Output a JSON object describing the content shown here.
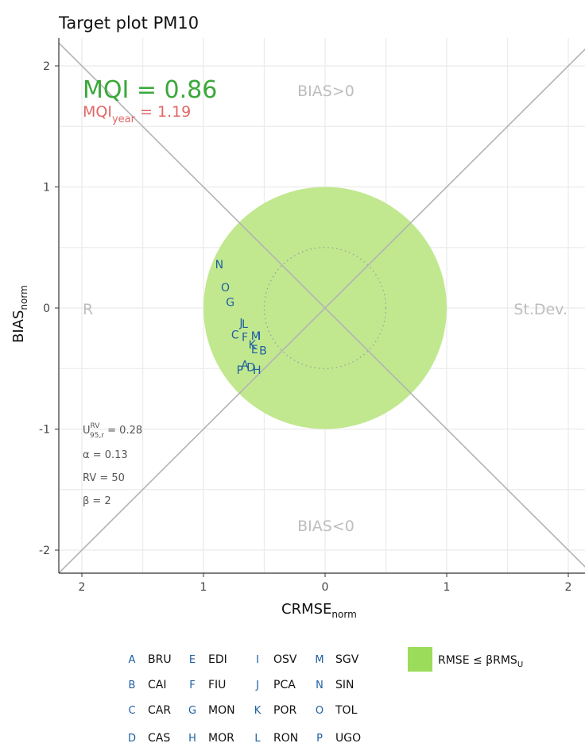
{
  "chart_data": {
    "type": "scatter",
    "title": "Target plot PM10",
    "xlabel": {
      "main": "CRMSE",
      "sub": "norm"
    },
    "ylabel": {
      "main": "BIAS",
      "sub": "norm"
    },
    "xlim": [
      -2.2,
      2.2
    ],
    "ylim": [
      -2.2,
      2.2
    ],
    "x_ticks": [
      -2,
      -1,
      0,
      1,
      2
    ],
    "x_tick_labels": [
      "2",
      "1",
      "0",
      "1",
      "2"
    ],
    "y_ticks": [
      -2,
      -1,
      0,
      1,
      2
    ],
    "y_tick_labels": [
      "-2",
      "-1",
      "0",
      "1",
      "2"
    ],
    "grid": true,
    "target_circle": {
      "radius": 1,
      "color": "#c1e88f"
    },
    "inner_circle_radius": 0.5,
    "quadrant_labels": {
      "top": "BIAS>0",
      "bottom": "BIAS<0",
      "left": "R",
      "right": "St.Dev."
    },
    "mqi": {
      "label": "MQI = 0.86",
      "color": "#3aa83a"
    },
    "mqi_year": {
      "main": "MQI",
      "sub": "year",
      "value": " = 1.19",
      "color": "#e06666"
    },
    "params": {
      "u": {
        "main": "U",
        "sup": "RV",
        "sub": "95,r",
        "value": " = 0.28"
      },
      "alpha": "α = 0.13",
      "rv": "RV = 50",
      "beta": "β = 2"
    },
    "point_color": "#1f5fa0",
    "points": [
      {
        "label": "A",
        "x": -0.66,
        "y": -0.47
      },
      {
        "label": "B",
        "x": -0.51,
        "y": -0.35
      },
      {
        "label": "C",
        "x": -0.74,
        "y": -0.22
      },
      {
        "label": "D",
        "x": -0.61,
        "y": -0.49
      },
      {
        "label": "E",
        "x": -0.58,
        "y": -0.34
      },
      {
        "label": "F",
        "x": -0.66,
        "y": -0.24
      },
      {
        "label": "G",
        "x": -0.78,
        "y": 0.05
      },
      {
        "label": "H",
        "x": -0.56,
        "y": -0.51
      },
      {
        "label": "I",
        "x": -0.54,
        "y": -0.23
      },
      {
        "label": "J",
        "x": -0.69,
        "y": -0.12
      },
      {
        "label": "K",
        "x": -0.6,
        "y": -0.3
      },
      {
        "label": "L",
        "x": -0.66,
        "y": -0.13
      },
      {
        "label": "M",
        "x": -0.57,
        "y": -0.23
      },
      {
        "label": "N",
        "x": -0.87,
        "y": 0.36
      },
      {
        "label": "O",
        "x": -0.82,
        "y": 0.17
      },
      {
        "label": "P",
        "x": -0.7,
        "y": -0.51
      }
    ],
    "legend_stations": [
      {
        "code": "A",
        "name": "BRU"
      },
      {
        "code": "B",
        "name": "CAI"
      },
      {
        "code": "C",
        "name": "CAR"
      },
      {
        "code": "D",
        "name": "CAS"
      },
      {
        "code": "E",
        "name": "EDI"
      },
      {
        "code": "F",
        "name": "FIU"
      },
      {
        "code": "G",
        "name": "MON"
      },
      {
        "code": "H",
        "name": "MOR"
      },
      {
        "code": "I",
        "name": "OSV"
      },
      {
        "code": "J",
        "name": "PCA"
      },
      {
        "code": "K",
        "name": "POR"
      },
      {
        "code": "L",
        "name": "RON"
      },
      {
        "code": "M",
        "name": "SGV"
      },
      {
        "code": "N",
        "name": "SIN"
      },
      {
        "code": "O",
        "name": "TOL"
      },
      {
        "code": "P",
        "name": "UGO"
      }
    ],
    "legend_fill": {
      "label_main": "RMSE ≤ βRMS",
      "label_sub": "U",
      "color": "#9bdc5a"
    }
  }
}
